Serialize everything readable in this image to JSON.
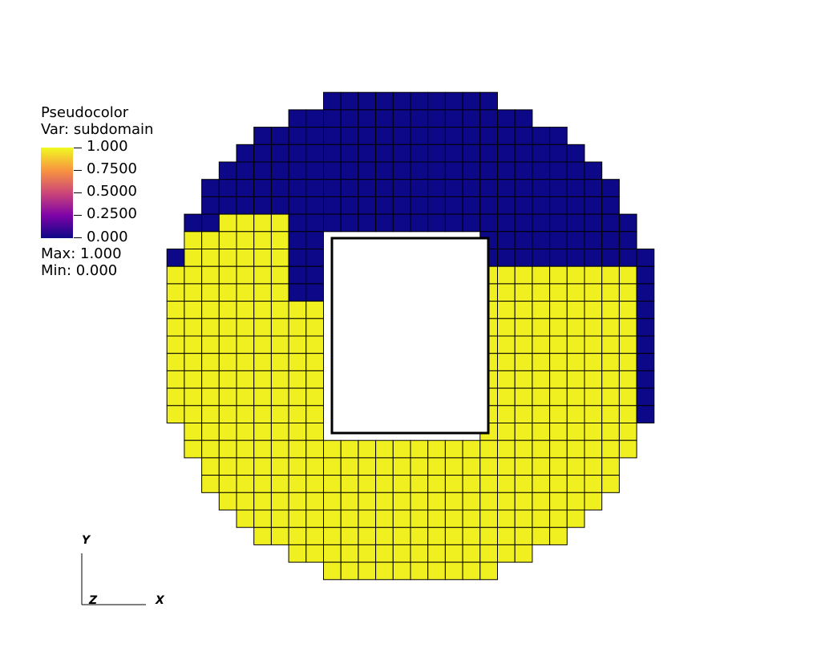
{
  "legend": {
    "title": "Pseudocolor",
    "var_label": "Var: subdomain",
    "ticks": [
      "1.000",
      "0.7500",
      "0.5000",
      "0.2500",
      "0.000"
    ],
    "max_label": "Max:  1.000",
    "min_label": "Min:  0.000",
    "colormap": [
      "#0d0887",
      "#7e03a8",
      "#cc4778",
      "#f89540",
      "#f0f921"
    ]
  },
  "colors": {
    "subdomain_0": "#0d0887",
    "subdomain_1": "#f0f021",
    "grid_line": "#000000"
  },
  "axes": {
    "x_label": "X",
    "y_label": "Y",
    "z_label": "Z"
  }
}
